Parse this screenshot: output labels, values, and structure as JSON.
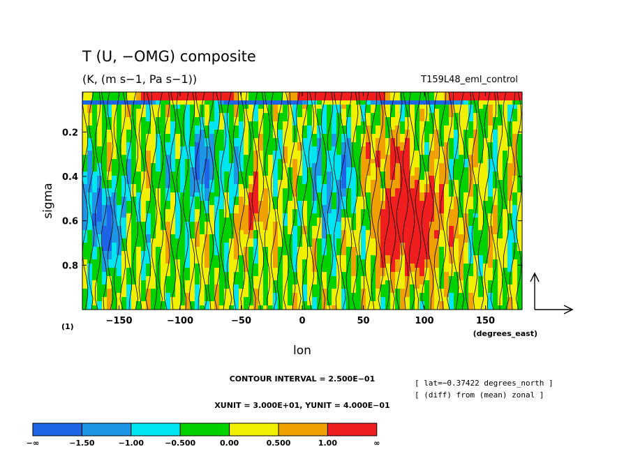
{
  "chart_data": {
    "type": "heatmap",
    "title": "T (U, −OMG) composite",
    "subtitle": "(K, (m s−1, Pa s−1))",
    "experiment": "T159L48_eml_control",
    "xlabel": "lon",
    "xunit_label": "(degrees_east)",
    "ylabel": "sigma",
    "panel_label": "(1)",
    "xlim": [
      -180,
      180
    ],
    "ylim": [
      1.0,
      0.02
    ],
    "x_ticks": [
      -150,
      -100,
      -50,
      0,
      50,
      100,
      150
    ],
    "x_tick_labels": [
      "−150",
      "−100",
      "−50",
      "0",
      "50",
      "100",
      "150"
    ],
    "y_ticks": [
      0.2,
      0.4,
      0.6,
      0.8
    ],
    "y_tick_labels": [
      "0.2",
      "0.4",
      "0.6",
      "0.8"
    ],
    "contour_interval_text": "CONTOUR INTERVAL = 2.500E−01",
    "unit_vector_text": "XUNIT = 3.000E+01, YUNIT = 4.000E−01",
    "annotations": [
      "[ lat=−0.37422 degrees_north ]",
      "[ (diff) from (mean) zonal ]"
    ],
    "colorbar": {
      "colors": [
        "#1e64e6",
        "#1e96e6",
        "#00e6f0",
        "#00d200",
        "#f0f000",
        "#f0a000",
        "#f01e1e"
      ],
      "labels": [
        "−∞",
        "−1.50",
        "−1.00",
        "−0.500",
        "0.00",
        "0.500",
        "1.00",
        "∞"
      ]
    },
    "grid": false,
    "legend": "none"
  }
}
